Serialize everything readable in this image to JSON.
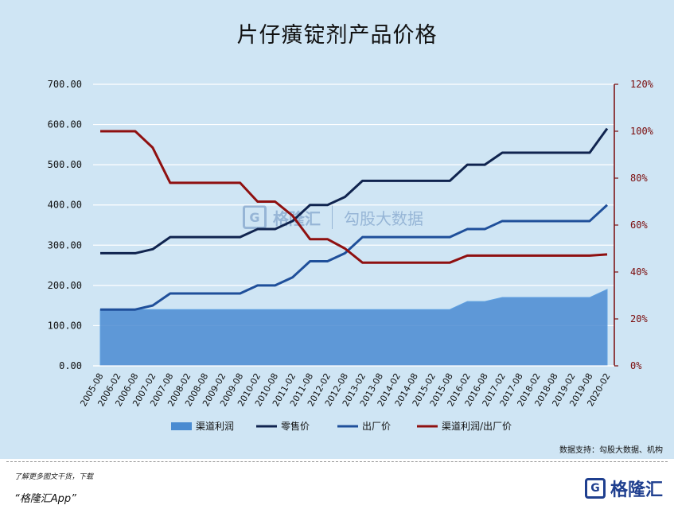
{
  "title": "片仔癀锭剂产品价格",
  "source": "数据支持：勾股大数据、机构",
  "footer": {
    "line1": "了解更多图文干货，下载",
    "line2": "“格隆汇App”",
    "brand": "格隆汇",
    "brand_icon_letter": "G"
  },
  "watermark": {
    "icon_letter": "G",
    "name1": "格隆汇",
    "name2": "勾股大数据"
  },
  "colors": {
    "area_fill": "#4a8bd1",
    "retail": "#10244f",
    "factory": "#1f4f9a",
    "ratio": "#8f1010",
    "background": "#cfe5f4"
  },
  "chart_data": {
    "type": "line",
    "title": "片仔癀锭剂产品价格",
    "x": [
      "2005-08",
      "2006-02",
      "2006-08",
      "2007-02",
      "2007-08",
      "2008-02",
      "2008-08",
      "2009-02",
      "2009-08",
      "2010-02",
      "2010-08",
      "2011-02",
      "2011-08",
      "2012-02",
      "2012-08",
      "2013-02",
      "2013-08",
      "2014-02",
      "2014-08",
      "2015-02",
      "2015-08",
      "2016-02",
      "2016-08",
      "2017-02",
      "2017-08",
      "2018-02",
      "2018-08",
      "2019-02",
      "2019-08",
      "2020-02"
    ],
    "y_left": {
      "min": 0,
      "max": 700,
      "step": 100,
      "ticks": [
        "0.00",
        "100.00",
        "200.00",
        "300.00",
        "400.00",
        "500.00",
        "600.00",
        "700.00"
      ]
    },
    "y_right": {
      "min": 0,
      "max": 1.2,
      "step": 0.2,
      "ticks": [
        "0%",
        "20%",
        "40%",
        "60%",
        "80%",
        "100%",
        "120%"
      ]
    },
    "series": [
      {
        "name": "渠道利润",
        "type": "area",
        "axis": "left",
        "values": [
          140,
          140,
          140,
          140,
          140,
          140,
          140,
          140,
          140,
          140,
          140,
          140,
          140,
          140,
          140,
          140,
          140,
          140,
          140,
          140,
          140,
          160,
          160,
          170,
          170,
          170,
          170,
          170,
          170,
          190
        ]
      },
      {
        "name": "零售价",
        "type": "line",
        "axis": "left",
        "values": [
          280,
          280,
          280,
          290,
          320,
          320,
          320,
          320,
          320,
          340,
          340,
          360,
          400,
          400,
          420,
          460,
          460,
          460,
          460,
          460,
          460,
          500,
          500,
          530,
          530,
          530,
          530,
          530,
          530,
          590
        ]
      },
      {
        "name": "出厂价",
        "type": "line",
        "axis": "left",
        "values": [
          140,
          140,
          140,
          150,
          180,
          180,
          180,
          180,
          180,
          200,
          200,
          220,
          260,
          260,
          280,
          320,
          320,
          320,
          320,
          320,
          320,
          340,
          340,
          360,
          360,
          360,
          360,
          360,
          360,
          400
        ]
      },
      {
        "name": "渠道利润/出厂价",
        "type": "line",
        "axis": "right",
        "values": [
          1.0,
          1.0,
          1.0,
          0.93,
          0.78,
          0.78,
          0.78,
          0.78,
          0.78,
          0.7,
          0.7,
          0.64,
          0.54,
          0.54,
          0.5,
          0.44,
          0.44,
          0.44,
          0.44,
          0.44,
          0.44,
          0.47,
          0.47,
          0.47,
          0.47,
          0.47,
          0.47,
          0.47,
          0.47,
          0.475
        ]
      }
    ],
    "legend_position": "bottom"
  }
}
